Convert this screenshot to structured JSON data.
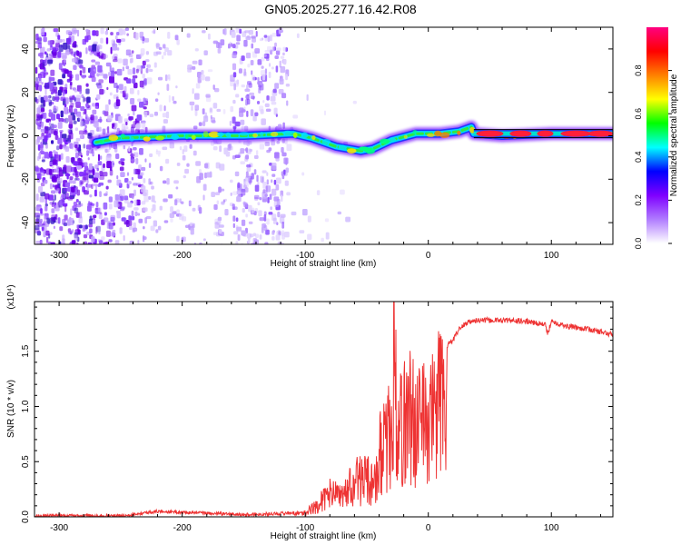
{
  "title": "GN05.2025.277.16.42.R08",
  "chart_data": [
    {
      "type": "heatmap",
      "xlabel": "Height of straight line (km)",
      "ylabel": "Frequency (Hz)",
      "xlim": [
        -320,
        150
      ],
      "ylim": [
        -50,
        50
      ],
      "xticks": [
        -300,
        -200,
        -100,
        0,
        100
      ],
      "yticks": [
        -40,
        -20,
        0,
        20,
        40
      ],
      "colorbar": {
        "label": "Normalized spectral amplitude",
        "range": [
          0,
          1
        ],
        "ticks": [
          0.0,
          0.2,
          0.4,
          0.6,
          0.8
        ],
        "colormap": [
          "#ffffff",
          "#b07cff",
          "#7f00ff",
          "#0000ff",
          "#00ffff",
          "#00ff00",
          "#ffff00",
          "#ff8000",
          "#ff0000",
          "#ff0080"
        ]
      },
      "ridge": [
        {
          "x": -270,
          "y": -3
        },
        {
          "x": -250,
          "y": -1
        },
        {
          "x": -200,
          "y": 0
        },
        {
          "x": -150,
          "y": 0
        },
        {
          "x": -110,
          "y": 1
        },
        {
          "x": -95,
          "y": -1
        },
        {
          "x": -75,
          "y": -5
        },
        {
          "x": -55,
          "y": -7
        },
        {
          "x": -45,
          "y": -6
        },
        {
          "x": -30,
          "y": -2
        },
        {
          "x": -10,
          "y": 1
        },
        {
          "x": 10,
          "y": 1
        },
        {
          "x": 25,
          "y": 2
        },
        {
          "x": 35,
          "y": 4
        },
        {
          "x": 37,
          "y": 1
        },
        {
          "x": 60,
          "y": 0
        },
        {
          "x": 100,
          "y": 1
        },
        {
          "x": 150,
          "y": 1
        }
      ]
    },
    {
      "type": "line",
      "xlabel": "Height of straight line (km)",
      "ylabel": "SNR (10 * v/v)",
      "yscale_label": "(x10⁴)",
      "xlim": [
        -320,
        150
      ],
      "ylim": [
        0,
        1.95
      ],
      "xticks": [
        -300,
        -200,
        -100,
        0,
        100
      ],
      "yticks": [
        0.0,
        0.5,
        1.0,
        1.5
      ],
      "ytick_labels": [
        "0.0",
        "0.5",
        "1.0",
        "1.5"
      ],
      "color": "#ee3333",
      "series": [
        {
          "x": [
            -320,
            -250,
            -220,
            -150,
            -120,
            -100,
            -90,
            -80,
            -70,
            -60,
            -50,
            -45,
            -40,
            -35,
            -30,
            -28,
            -25,
            -20,
            -15,
            -10,
            -5,
            0,
            5,
            10,
            15,
            20,
            25,
            30,
            35,
            40,
            60,
            80,
            95,
            97,
            100,
            110,
            130,
            150
          ],
          "values": [
            0.01,
            0.01,
            0.05,
            0.02,
            0.03,
            0.05,
            0.15,
            0.3,
            0.25,
            0.45,
            0.5,
            0.4,
            0.8,
            0.9,
            1.1,
            1.95,
            1.0,
            1.2,
            1.4,
            1.1,
            1.3,
            1.15,
            1.4,
            1.5,
            1.55,
            1.6,
            1.7,
            1.75,
            1.77,
            1.78,
            1.78,
            1.77,
            1.74,
            1.65,
            1.78,
            1.73,
            1.7,
            1.65
          ]
        }
      ]
    }
  ]
}
